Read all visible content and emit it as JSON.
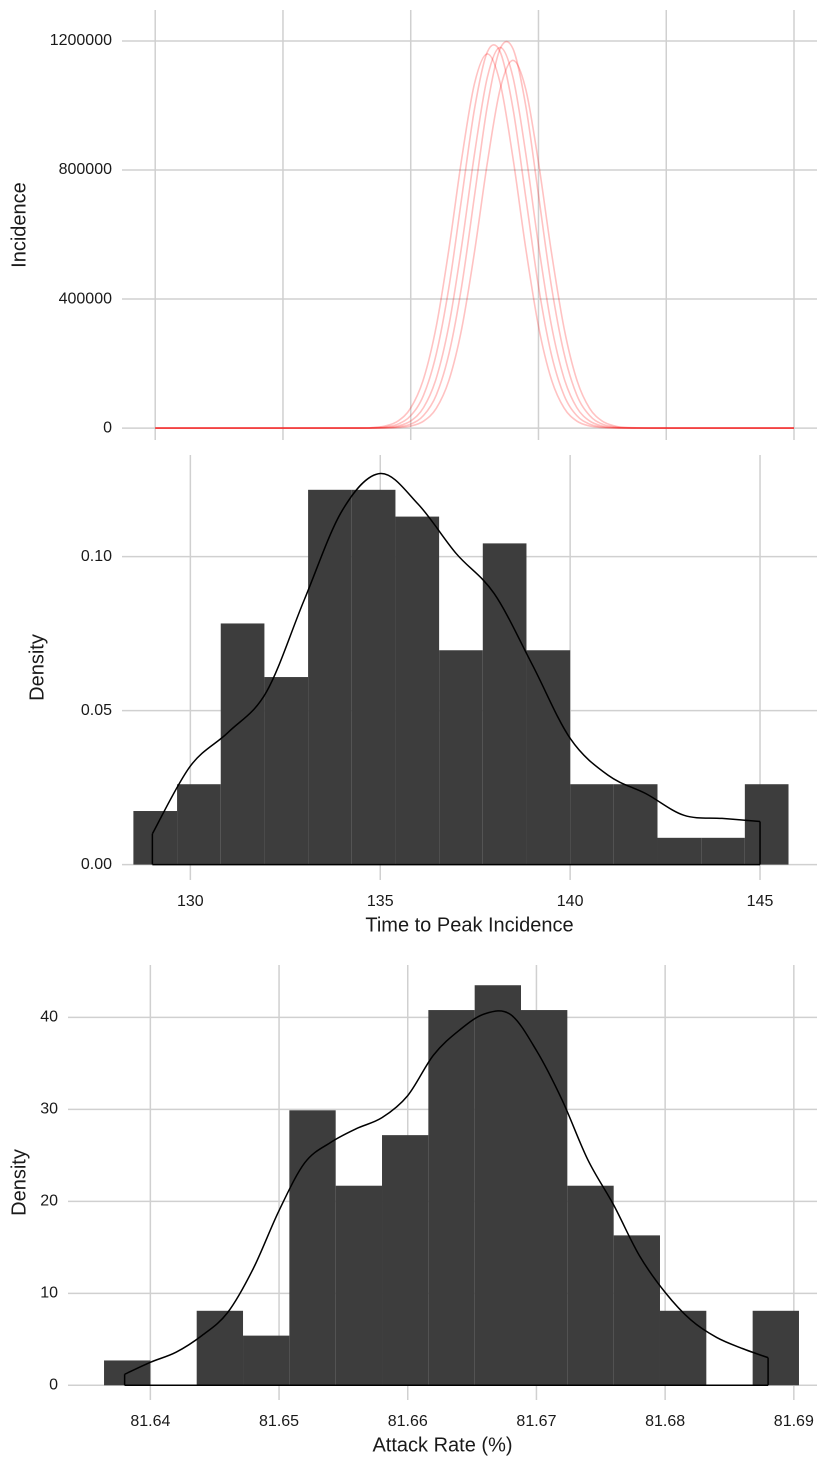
{
  "chart_data": [
    {
      "type": "line",
      "ylabel": "Incidence",
      "x": [
        0,
        50,
        80,
        85,
        90,
        95,
        100,
        105,
        110,
        115,
        120,
        125,
        130,
        135,
        140,
        145,
        150,
        155,
        160,
        165,
        170,
        175,
        180,
        185,
        200,
        250
      ],
      "series": [
        {
          "color": "#ff00003d",
          "values": [
            0,
            0,
            348,
            1624,
            6380,
            21692,
            62292,
            151960,
            315520,
            557960,
            837520,
            1069520,
            1160000,
            1069520,
            837520,
            557960,
            315520,
            151960,
            62292,
            21692,
            6380,
            1624,
            348,
            58,
            0,
            0
          ]
        },
        {
          "color": "#ff00003d",
          "values": [
            0,
            0,
            155,
            833,
            3332,
            12257,
            38556,
            101626,
            229670,
            439110,
            716380,
            991270,
            1166200,
            1166200,
            991270,
            716380,
            439110,
            229670,
            101626,
            38556,
            12257,
            3332,
            833,
            155,
            0,
            0
          ]
        },
        {
          "color": "#ff00003d",
          "values": [
            0,
            0,
            59,
            354,
            1652,
            6490,
            22066,
            63366,
            154580,
            320960,
            567580,
            851960,
            1087960,
            1180000,
            1087960,
            851960,
            567580,
            320960,
            154580,
            63366,
            22066,
            6490,
            1652,
            354,
            0,
            0
          ]
        },
        {
          "color": "#ff00003d",
          "values": [
            0,
            0,
            24,
            156,
            840,
            3360,
            12360,
            38880,
            102480,
            231600,
            442800,
            722400,
            999600,
            1176000,
            1176000,
            999600,
            722400,
            442800,
            231600,
            102480,
            38880,
            12360,
            3360,
            840,
            0,
            0
          ]
        },
        {
          "color": "#ff00003d",
          "values": [
            0,
            0,
            11,
            57,
            342,
            1596,
            6270,
            21318,
            61218,
            149340,
            310080,
            548340,
            823080,
            1051080,
            1140000,
            1051080,
            823080,
            548340,
            310080,
            149340,
            61218,
            21318,
            6270,
            1596,
            11,
            0
          ]
        }
      ],
      "xlim": [
        -13,
        259
      ],
      "ylim": [
        -37000,
        1296000
      ],
      "xticks": [
        0,
        50,
        100,
        150,
        200,
        250
      ],
      "xtick_labels": false,
      "yticks": [
        0,
        400000,
        800000,
        1200000
      ],
      "grid": true
    },
    {
      "type": "histogram",
      "xlabel": "Time to Peak Incidence",
      "ylabel": "Density",
      "bins": [
        128.5,
        129.65,
        130.8,
        131.95,
        133.1,
        134.25,
        135.4,
        136.55,
        137.7,
        138.85,
        140,
        141.15,
        142.3,
        143.45,
        144.6,
        145.75
      ],
      "values": [
        0.0174,
        0.0261,
        0.0783,
        0.0609,
        0.1217,
        0.1217,
        0.113,
        0.0696,
        0.1043,
        0.0696,
        0.0261,
        0.0261,
        0.0087,
        0.0087,
        0.0261
      ],
      "color": "#3d3d3d",
      "density": {
        "x": [
          129,
          130,
          131,
          132,
          133,
          134,
          135,
          136,
          137,
          138,
          139,
          140,
          141,
          142,
          143,
          144,
          145
        ],
        "values": [
          0.01,
          0.032,
          0.043,
          0.056,
          0.086,
          0.115,
          0.127,
          0.117,
          0.101,
          0.088,
          0.065,
          0.041,
          0.029,
          0.023,
          0.016,
          0.015,
          0.014
        ],
        "color": "#000000"
      },
      "xlim": [
        128.2,
        146.5
      ],
      "ylim": [
        -0.005,
        0.133
      ],
      "xticks": [
        130,
        135,
        140,
        145
      ],
      "yticks": [
        {
          "value": 0,
          "label": "0.00"
        },
        {
          "value": 0.05,
          "label": "0.05"
        },
        {
          "value": 0.1,
          "label": "0.10"
        }
      ],
      "grid": true
    },
    {
      "type": "histogram",
      "xlabel": "Attack Rate (%)",
      "ylabel": "Density",
      "bins": [
        81.6364,
        81.64,
        81.6436,
        81.6472,
        81.6508,
        81.6544,
        81.658,
        81.6616,
        81.6652,
        81.6688,
        81.6724,
        81.676,
        81.6796,
        81.6832,
        81.6868,
        81.6904
      ],
      "values": [
        2.7,
        0,
        8.1,
        5.4,
        29.9,
        21.7,
        27.2,
        40.8,
        43.5,
        40.8,
        21.7,
        16.3,
        8.1,
        0,
        8.1
      ],
      "color": "#3d3d3d",
      "density": {
        "x": [
          81.638,
          81.64,
          81.642,
          81.644,
          81.646,
          81.648,
          81.65,
          81.652,
          81.654,
          81.656,
          81.658,
          81.66,
          81.662,
          81.664,
          81.666,
          81.668,
          81.67,
          81.672,
          81.674,
          81.676,
          81.678,
          81.68,
          81.682,
          81.684,
          81.686,
          81.688
        ],
        "values": [
          1.2,
          2.5,
          3.6,
          5.4,
          7.9,
          12.7,
          19.0,
          24.2,
          26.4,
          27.9,
          29.1,
          31.5,
          35.9,
          38.6,
          40.4,
          40.3,
          36.4,
          31.0,
          24.5,
          19.6,
          14.1,
          10.1,
          7.1,
          5.2,
          4.0,
          3.0
        ],
        "color": "#000000"
      },
      "xlim": [
        81.6336,
        81.6918
      ],
      "ylim": [
        -1.6,
        45.7
      ],
      "xticks": [
        81.64,
        81.65,
        81.66,
        81.67,
        81.68,
        81.69
      ],
      "yticks": [
        0,
        10,
        20,
        30,
        40
      ],
      "grid": true
    }
  ]
}
